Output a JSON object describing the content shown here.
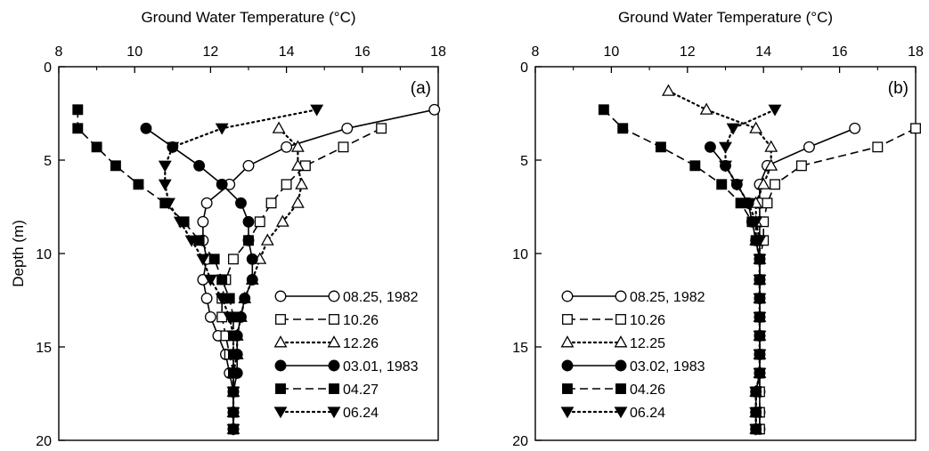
{
  "chart_data": [
    {
      "type": "line",
      "panel_label": "(a)",
      "xlabel": "Ground Water Temperature (°C)",
      "ylabel": "Depth (m)",
      "xlim": [
        8,
        18
      ],
      "ylim": [
        20,
        0
      ],
      "x_ticks": [
        8,
        10,
        12,
        14,
        16,
        18
      ],
      "y_ticks": [
        0,
        5,
        10,
        15,
        20
      ],
      "grid": false,
      "legend_position": "lower-right",
      "series": [
        {
          "name": "08.25, 1982",
          "marker": "circle-open",
          "line": "solid",
          "points": [
            [
              17.9,
              2.3
            ],
            [
              15.6,
              3.3
            ],
            [
              14.0,
              4.3
            ],
            [
              13.0,
              5.3
            ],
            [
              12.5,
              6.3
            ],
            [
              11.9,
              7.3
            ],
            [
              11.8,
              8.3
            ],
            [
              11.8,
              9.3
            ],
            [
              11.9,
              10.3
            ],
            [
              11.8,
              11.4
            ],
            [
              11.9,
              12.4
            ],
            [
              12.0,
              13.4
            ],
            [
              12.2,
              14.4
            ],
            [
              12.4,
              15.4
            ],
            [
              12.5,
              16.4
            ],
            [
              12.6,
              17.4
            ],
            [
              12.6,
              18.5
            ],
            [
              12.6,
              19.4
            ]
          ]
        },
        {
          "name": "10.26",
          "marker": "square-open",
          "line": "dashed",
          "points": [
            [
              16.5,
              3.3
            ],
            [
              15.5,
              4.3
            ],
            [
              14.5,
              5.3
            ],
            [
              14.0,
              6.3
            ],
            [
              13.6,
              7.3
            ],
            [
              13.3,
              8.3
            ],
            [
              13.0,
              9.3
            ],
            [
              12.6,
              10.3
            ],
            [
              12.4,
              11.4
            ],
            [
              12.3,
              12.4
            ],
            [
              12.3,
              13.4
            ],
            [
              12.4,
              14.4
            ],
            [
              12.5,
              15.4
            ],
            [
              12.6,
              16.4
            ],
            [
              12.6,
              17.4
            ],
            [
              12.6,
              18.5
            ],
            [
              12.6,
              19.4
            ]
          ]
        },
        {
          "name": "12.26",
          "marker": "triangle-open",
          "line": "dotted",
          "points": [
            [
              13.8,
              3.3
            ],
            [
              14.3,
              4.3
            ],
            [
              14.3,
              5.3
            ],
            [
              14.4,
              6.3
            ],
            [
              14.3,
              7.3
            ],
            [
              13.9,
              8.3
            ],
            [
              13.5,
              9.3
            ],
            [
              13.3,
              10.3
            ],
            [
              13.1,
              11.4
            ],
            [
              12.9,
              12.4
            ],
            [
              12.8,
              13.4
            ],
            [
              12.7,
              14.4
            ],
            [
              12.7,
              15.4
            ],
            [
              12.6,
              16.4
            ],
            [
              12.6,
              17.4
            ],
            [
              12.6,
              18.5
            ],
            [
              12.6,
              19.4
            ]
          ]
        },
        {
          "name": "03.01, 1983",
          "marker": "circle-filled",
          "line": "solid",
          "points": [
            [
              10.3,
              3.3
            ],
            [
              11.0,
              4.3
            ],
            [
              11.7,
              5.3
            ],
            [
              12.3,
              6.3
            ],
            [
              12.8,
              7.3
            ],
            [
              13.0,
              8.3
            ],
            [
              13.0,
              9.3
            ],
            [
              13.1,
              10.3
            ],
            [
              13.1,
              11.4
            ],
            [
              12.9,
              12.4
            ],
            [
              12.8,
              13.4
            ],
            [
              12.7,
              14.4
            ],
            [
              12.7,
              15.4
            ],
            [
              12.7,
              16.4
            ],
            [
              12.6,
              17.4
            ],
            [
              12.6,
              18.5
            ],
            [
              12.6,
              19.4
            ]
          ]
        },
        {
          "name": "04.27",
          "marker": "square-filled",
          "line": "dashed",
          "points": [
            [
              8.5,
              2.3
            ],
            [
              8.5,
              3.3
            ],
            [
              9.0,
              4.3
            ],
            [
              9.5,
              5.3
            ],
            [
              10.1,
              6.3
            ],
            [
              10.8,
              7.3
            ],
            [
              11.3,
              8.3
            ],
            [
              11.7,
              9.3
            ],
            [
              12.1,
              10.3
            ],
            [
              12.3,
              11.4
            ],
            [
              12.5,
              12.4
            ],
            [
              12.6,
              13.4
            ],
            [
              12.6,
              14.4
            ],
            [
              12.6,
              15.4
            ],
            [
              12.6,
              16.4
            ],
            [
              12.6,
              17.4
            ],
            [
              12.6,
              18.5
            ],
            [
              12.6,
              19.4
            ]
          ]
        },
        {
          "name": "06.24",
          "marker": "triangle-down-filled",
          "line": "dotted",
          "points": [
            [
              14.8,
              2.3
            ],
            [
              12.3,
              3.3
            ],
            [
              11.0,
              4.3
            ],
            [
              10.8,
              5.3
            ],
            [
              10.8,
              6.3
            ],
            [
              10.9,
              7.3
            ],
            [
              11.2,
              8.3
            ],
            [
              11.5,
              9.3
            ],
            [
              11.8,
              10.3
            ],
            [
              12.0,
              11.4
            ],
            [
              12.3,
              12.4
            ],
            [
              12.5,
              13.4
            ],
            [
              12.6,
              14.4
            ],
            [
              12.6,
              15.4
            ],
            [
              12.6,
              16.4
            ],
            [
              12.6,
              17.4
            ],
            [
              12.6,
              18.5
            ],
            [
              12.6,
              19.4
            ]
          ]
        }
      ]
    },
    {
      "type": "line",
      "panel_label": "(b)",
      "xlabel": "Ground Water Temperature (°C)",
      "ylabel": "",
      "xlim": [
        8,
        18
      ],
      "ylim": [
        20,
        0
      ],
      "x_ticks": [
        8,
        10,
        12,
        14,
        16,
        18
      ],
      "y_ticks": [
        0,
        5,
        10,
        15,
        20
      ],
      "grid": false,
      "legend_position": "lower-left",
      "series": [
        {
          "name": "08.25, 1982",
          "marker": "circle-open",
          "line": "solid",
          "points": [
            [
              16.4,
              3.3
            ],
            [
              15.2,
              4.3
            ],
            [
              14.1,
              5.3
            ],
            [
              13.9,
              6.3
            ],
            [
              13.9,
              7.3
            ],
            [
              13.9,
              8.3
            ],
            [
              13.9,
              9.3
            ],
            [
              13.9,
              10.3
            ],
            [
              13.9,
              11.4
            ],
            [
              13.9,
              12.4
            ],
            [
              13.9,
              13.4
            ],
            [
              13.9,
              14.4
            ],
            [
              13.9,
              15.4
            ],
            [
              13.9,
              16.4
            ],
            [
              13.9,
              17.4
            ],
            [
              13.9,
              18.5
            ],
            [
              13.9,
              19.4
            ]
          ]
        },
        {
          "name": "10.26",
          "marker": "square-open",
          "line": "dashed",
          "points": [
            [
              18.0,
              3.3
            ],
            [
              17.0,
              4.3
            ],
            [
              15.0,
              5.3
            ],
            [
              14.3,
              6.3
            ],
            [
              14.1,
              7.3
            ],
            [
              14.0,
              8.3
            ],
            [
              14.0,
              9.3
            ],
            [
              13.9,
              10.3
            ],
            [
              13.9,
              11.4
            ],
            [
              13.9,
              12.4
            ],
            [
              13.9,
              13.4
            ],
            [
              13.9,
              14.4
            ],
            [
              13.9,
              15.4
            ],
            [
              13.9,
              16.4
            ],
            [
              13.9,
              17.4
            ],
            [
              13.9,
              18.5
            ],
            [
              13.9,
              19.4
            ]
          ]
        },
        {
          "name": "12.25",
          "marker": "triangle-open",
          "line": "dotted",
          "points": [
            [
              11.5,
              1.3
            ],
            [
              12.5,
              2.3
            ],
            [
              13.8,
              3.3
            ],
            [
              14.2,
              4.3
            ],
            [
              14.2,
              5.3
            ],
            [
              14.0,
              6.3
            ],
            [
              13.8,
              7.3
            ],
            [
              13.8,
              8.3
            ],
            [
              13.8,
              9.3
            ],
            [
              13.9,
              10.3
            ],
            [
              13.9,
              11.4
            ],
            [
              13.9,
              12.4
            ],
            [
              13.9,
              13.4
            ],
            [
              13.9,
              14.4
            ],
            [
              13.9,
              15.4
            ],
            [
              13.9,
              16.4
            ],
            [
              13.8,
              17.4
            ],
            [
              13.8,
              18.5
            ],
            [
              13.8,
              19.4
            ]
          ]
        },
        {
          "name": "03.02, 1983",
          "marker": "circle-filled",
          "line": "solid",
          "points": [
            [
              12.6,
              4.3
            ],
            [
              13.0,
              5.3
            ],
            [
              13.3,
              6.3
            ],
            [
              13.6,
              7.3
            ],
            [
              13.7,
              8.3
            ],
            [
              13.8,
              9.3
            ],
            [
              13.9,
              10.3
            ],
            [
              13.9,
              11.4
            ],
            [
              13.9,
              12.4
            ],
            [
              13.9,
              13.4
            ],
            [
              13.9,
              14.4
            ],
            [
              13.9,
              15.4
            ],
            [
              13.9,
              16.4
            ],
            [
              13.8,
              17.4
            ],
            [
              13.8,
              18.5
            ],
            [
              13.8,
              19.4
            ]
          ]
        },
        {
          "name": "04.26",
          "marker": "square-filled",
          "line": "dashed",
          "points": [
            [
              9.8,
              2.3
            ],
            [
              10.3,
              3.3
            ],
            [
              11.3,
              4.3
            ],
            [
              12.2,
              5.3
            ],
            [
              12.9,
              6.3
            ],
            [
              13.4,
              7.3
            ],
            [
              13.7,
              8.3
            ],
            [
              13.8,
              9.3
            ],
            [
              13.9,
              10.3
            ],
            [
              13.9,
              11.4
            ],
            [
              13.9,
              12.4
            ],
            [
              13.9,
              13.4
            ],
            [
              13.9,
              14.4
            ],
            [
              13.9,
              15.4
            ],
            [
              13.9,
              16.4
            ],
            [
              13.8,
              17.4
            ],
            [
              13.8,
              18.5
            ],
            [
              13.8,
              19.4
            ]
          ]
        },
        {
          "name": "06.24",
          "marker": "triangle-down-filled",
          "line": "dotted",
          "points": [
            [
              14.3,
              2.3
            ],
            [
              13.2,
              3.3
            ],
            [
              13.0,
              4.3
            ],
            [
              13.0,
              5.3
            ],
            [
              13.3,
              6.3
            ],
            [
              13.6,
              7.3
            ],
            [
              13.8,
              8.3
            ],
            [
              13.9,
              9.3
            ],
            [
              13.9,
              10.3
            ],
            [
              13.9,
              11.4
            ],
            [
              13.9,
              12.4
            ],
            [
              13.9,
              13.4
            ],
            [
              13.9,
              14.4
            ],
            [
              13.9,
              15.4
            ],
            [
              13.9,
              16.4
            ],
            [
              13.8,
              17.4
            ],
            [
              13.8,
              18.5
            ],
            [
              13.8,
              19.4
            ]
          ]
        }
      ]
    }
  ]
}
